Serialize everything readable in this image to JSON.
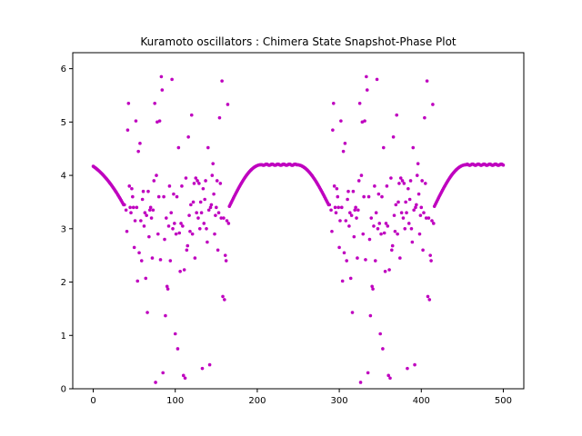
{
  "chart_data": {
    "type": "scatter",
    "title": "Kuramoto  oscillators : Chimera State Snapshot-Phase Plot",
    "xlabel": "",
    "ylabel": "",
    "xlim": [
      -25,
      525
    ],
    "ylim": [
      0,
      6.3
    ],
    "xticks": [
      0,
      100,
      200,
      300,
      400,
      500
    ],
    "yticks": [
      0,
      1,
      2,
      3,
      4,
      5,
      6
    ],
    "grid": false,
    "legend": "none",
    "marker_color": "#bf00bf",
    "incoherent_points": [
      [
        38,
        3.45
      ],
      [
        40,
        3.35
      ],
      [
        41,
        2.95
      ],
      [
        42,
        4.85
      ],
      [
        43,
        5.35
      ],
      [
        44,
        3.8
      ],
      [
        45,
        3.4
      ],
      [
        46,
        3.3
      ],
      [
        47,
        3.75
      ],
      [
        48,
        3.6
      ],
      [
        49,
        3.4
      ],
      [
        50,
        2.65
      ],
      [
        51,
        3.15
      ],
      [
        52,
        5.02
      ],
      [
        53,
        3.4
      ],
      [
        54,
        2.02
      ],
      [
        55,
        4.45
      ],
      [
        56,
        2.55
      ],
      [
        57,
        4.6
      ],
      [
        58,
        3.15
      ],
      [
        59,
        2.4
      ],
      [
        60,
        3.55
      ],
      [
        61,
        3.7
      ],
      [
        62,
        3.05
      ],
      [
        63,
        3.3
      ],
      [
        64,
        2.07
      ],
      [
        65,
        3.25
      ],
      [
        66,
        1.43
      ],
      [
        67,
        3.7
      ],
      [
        68,
        2.85
      ],
      [
        69,
        3.35
      ],
      [
        70,
        3.4
      ],
      [
        71,
        3.2
      ],
      [
        72,
        2.45
      ],
      [
        73,
        3.35
      ],
      [
        74,
        3.9
      ],
      [
        75,
        5.35
      ],
      [
        76,
        0.12
      ],
      [
        77,
        4.0
      ],
      [
        78,
        5.0
      ],
      [
        79,
        2.9
      ],
      [
        80,
        3.6
      ],
      [
        81,
        5.02
      ],
      [
        82,
        2.42
      ],
      [
        83,
        5.85
      ],
      [
        84,
        5.6
      ],
      [
        85,
        0.3
      ],
      [
        86,
        3.6
      ],
      [
        87,
        2.8
      ],
      [
        88,
        1.37
      ],
      [
        89,
        3.2
      ],
      [
        90,
        1.92
      ],
      [
        91,
        1.87
      ],
      [
        92,
        3.05
      ],
      [
        93,
        3.8
      ],
      [
        94,
        2.4
      ],
      [
        95,
        3.3
      ],
      [
        96,
        5.8
      ],
      [
        97,
        3.0
      ],
      [
        98,
        3.65
      ],
      [
        99,
        3.1
      ],
      [
        100,
        1.03
      ],
      [
        101,
        2.9
      ],
      [
        102,
        3.6
      ],
      [
        103,
        0.75
      ],
      [
        104,
        4.52
      ],
      [
        105,
        2.92
      ],
      [
        106,
        2.2
      ],
      [
        107,
        3.1
      ],
      [
        108,
        3.8
      ],
      [
        109,
        3.05
      ],
      [
        110,
        0.25
      ],
      [
        111,
        2.23
      ],
      [
        112,
        0.2
      ],
      [
        113,
        3.95
      ],
      [
        114,
        2.6
      ],
      [
        115,
        2.68
      ],
      [
        116,
        4.72
      ],
      [
        117,
        3.25
      ],
      [
        118,
        2.95
      ],
      [
        119,
        3.45
      ],
      [
        120,
        5.13
      ],
      [
        121,
        2.9
      ],
      [
        122,
        3.5
      ],
      [
        123,
        3.85
      ],
      [
        124,
        2.45
      ],
      [
        125,
        3.95
      ],
      [
        126,
        3.3
      ],
      [
        127,
        3.9
      ],
      [
        128,
        3.2
      ],
      [
        129,
        3.85
      ],
      [
        130,
        3.0
      ],
      [
        131,
        3.5
      ],
      [
        132,
        3.3
      ],
      [
        133,
        0.38
      ],
      [
        134,
        3.75
      ],
      [
        135,
        3.1
      ],
      [
        136,
        3.55
      ],
      [
        137,
        3.9
      ],
      [
        138,
        3.0
      ],
      [
        139,
        2.75
      ],
      [
        140,
        4.52
      ],
      [
        141,
        3.35
      ],
      [
        142,
        0.45
      ],
      [
        143,
        3.4
      ],
      [
        144,
        3.45
      ],
      [
        145,
        4.0
      ],
      [
        146,
        4.22
      ],
      [
        147,
        3.65
      ],
      [
        148,
        2.9
      ],
      [
        149,
        3.25
      ],
      [
        150,
        3.4
      ],
      [
        151,
        3.9
      ],
      [
        152,
        2.6
      ],
      [
        153,
        3.3
      ],
      [
        154,
        5.08
      ],
      [
        155,
        3.85
      ],
      [
        156,
        3.2
      ],
      [
        157,
        5.77
      ],
      [
        158,
        1.73
      ],
      [
        159,
        3.2
      ],
      [
        160,
        1.67
      ],
      [
        161,
        2.5
      ],
      [
        162,
        2.4
      ],
      [
        163,
        3.15
      ],
      [
        164,
        5.33
      ],
      [
        165,
        3.1
      ],
      [
        288,
        3.45
      ],
      [
        290,
        3.35
      ],
      [
        291,
        2.95
      ],
      [
        292,
        4.85
      ],
      [
        293,
        5.35
      ],
      [
        294,
        3.8
      ],
      [
        295,
        3.4
      ],
      [
        296,
        3.3
      ],
      [
        297,
        3.75
      ],
      [
        298,
        3.6
      ],
      [
        299,
        3.4
      ],
      [
        300,
        2.65
      ],
      [
        301,
        3.15
      ],
      [
        302,
        5.02
      ],
      [
        303,
        3.4
      ],
      [
        304,
        2.02
      ],
      [
        305,
        4.45
      ],
      [
        306,
        2.55
      ],
      [
        307,
        4.6
      ],
      [
        308,
        3.15
      ],
      [
        309,
        2.4
      ],
      [
        310,
        3.55
      ],
      [
        311,
        3.7
      ],
      [
        312,
        3.05
      ],
      [
        313,
        3.3
      ],
      [
        314,
        2.07
      ],
      [
        315,
        3.25
      ],
      [
        316,
        1.43
      ],
      [
        317,
        3.7
      ],
      [
        318,
        2.85
      ],
      [
        319,
        3.35
      ],
      [
        320,
        3.4
      ],
      [
        321,
        3.2
      ],
      [
        322,
        2.45
      ],
      [
        323,
        3.35
      ],
      [
        324,
        3.9
      ],
      [
        325,
        5.35
      ],
      [
        326,
        0.12
      ],
      [
        327,
        4.0
      ],
      [
        328,
        5.0
      ],
      [
        329,
        2.9
      ],
      [
        330,
        3.6
      ],
      [
        331,
        5.02
      ],
      [
        332,
        2.42
      ],
      [
        333,
        5.85
      ],
      [
        334,
        5.6
      ],
      [
        335,
        0.3
      ],
      [
        336,
        3.6
      ],
      [
        337,
        2.8
      ],
      [
        338,
        1.37
      ],
      [
        339,
        3.2
      ],
      [
        340,
        1.92
      ],
      [
        341,
        1.87
      ],
      [
        342,
        3.05
      ],
      [
        343,
        3.8
      ],
      [
        344,
        2.4
      ],
      [
        345,
        3.3
      ],
      [
        346,
        5.8
      ],
      [
        347,
        3.0
      ],
      [
        348,
        3.65
      ],
      [
        349,
        3.1
      ],
      [
        350,
        1.03
      ],
      [
        351,
        2.9
      ],
      [
        352,
        3.6
      ],
      [
        353,
        0.75
      ],
      [
        354,
        4.52
      ],
      [
        355,
        2.92
      ],
      [
        356,
        2.2
      ],
      [
        357,
        3.1
      ],
      [
        358,
        3.8
      ],
      [
        359,
        3.05
      ],
      [
        360,
        0.25
      ],
      [
        361,
        2.23
      ],
      [
        362,
        0.2
      ],
      [
        363,
        3.95
      ],
      [
        364,
        2.6
      ],
      [
        365,
        2.68
      ],
      [
        366,
        4.72
      ],
      [
        367,
        3.25
      ],
      [
        368,
        2.95
      ],
      [
        369,
        3.45
      ],
      [
        370,
        5.13
      ],
      [
        371,
        2.9
      ],
      [
        372,
        3.5
      ],
      [
        373,
        3.85
      ],
      [
        374,
        2.45
      ],
      [
        375,
        3.95
      ],
      [
        376,
        3.3
      ],
      [
        377,
        3.9
      ],
      [
        378,
        3.2
      ],
      [
        379,
        3.85
      ],
      [
        380,
        3.0
      ],
      [
        381,
        3.5
      ],
      [
        382,
        3.3
      ],
      [
        383,
        0.38
      ],
      [
        384,
        3.75
      ],
      [
        385,
        3.1
      ],
      [
        386,
        3.55
      ],
      [
        387,
        3.9
      ],
      [
        388,
        3.0
      ],
      [
        389,
        2.75
      ],
      [
        390,
        4.52
      ],
      [
        391,
        3.35
      ],
      [
        392,
        0.45
      ],
      [
        393,
        3.4
      ],
      [
        394,
        3.45
      ],
      [
        395,
        4.0
      ],
      [
        396,
        4.22
      ],
      [
        397,
        3.65
      ],
      [
        398,
        2.9
      ],
      [
        399,
        3.25
      ],
      [
        400,
        3.4
      ],
      [
        401,
        3.9
      ],
      [
        402,
        2.6
      ],
      [
        403,
        3.3
      ],
      [
        404,
        5.08
      ],
      [
        405,
        3.85
      ],
      [
        406,
        3.2
      ],
      [
        407,
        5.77
      ],
      [
        408,
        1.73
      ],
      [
        409,
        3.2
      ],
      [
        410,
        1.67
      ],
      [
        411,
        2.5
      ],
      [
        412,
        2.4
      ],
      [
        413,
        3.15
      ],
      [
        414,
        5.33
      ],
      [
        415,
        3.1
      ]
    ],
    "coherent_curves": [
      {
        "x_start": 0,
        "x_end": 37,
        "y_start": 4.17,
        "y_end": 3.45
      },
      {
        "x_start": 166,
        "x_end": 287,
        "y_levels": [
          3.42,
          4.2,
          4.2,
          3.45
        ]
      },
      {
        "x_start": 416,
        "x_end": 500,
        "y_levels": [
          3.42,
          4.2,
          4.2
        ]
      }
    ]
  }
}
